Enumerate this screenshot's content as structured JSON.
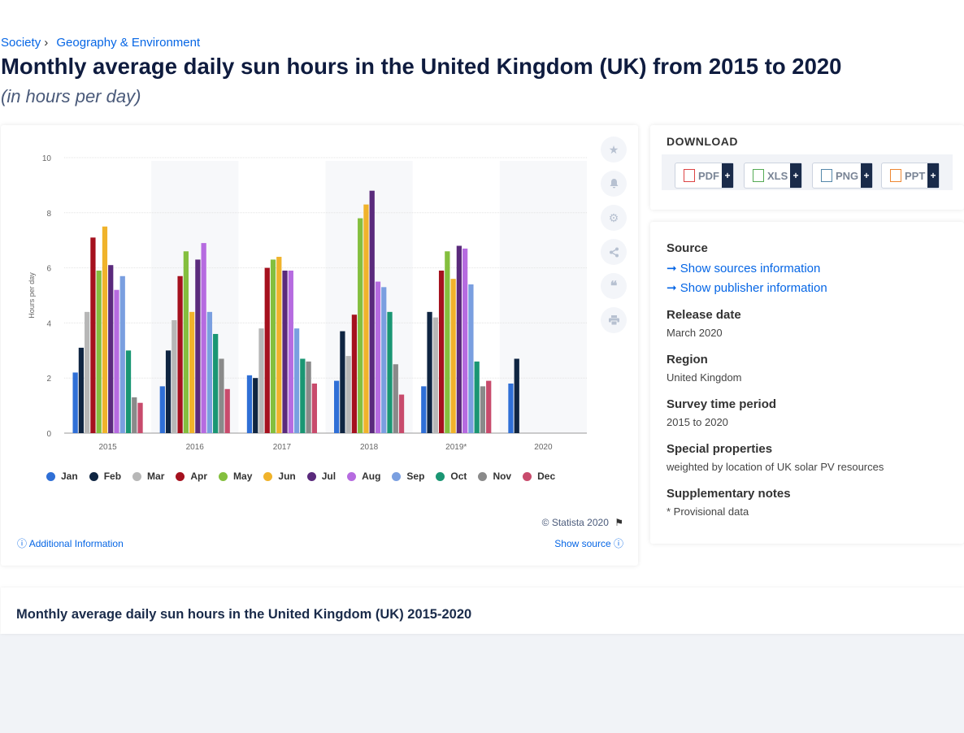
{
  "breadcrumb": {
    "item1": "Society",
    "item2": "Geography & Environment"
  },
  "header": {
    "title": "Monthly average daily sun hours in the United Kingdom (UK) from 2015 to 2020",
    "subtitle": "(in hours per day)"
  },
  "chart_card": {
    "copyright": "© Statista 2020",
    "additional_info": "Additional Information",
    "show_source": "Show source"
  },
  "download": {
    "title": "DOWNLOAD",
    "buttons": [
      "PDF",
      "XLS",
      "PNG",
      "PPT"
    ],
    "plus": "+"
  },
  "info": {
    "source_label": "Source",
    "show_sources": "Show sources information",
    "show_publisher": "Show publisher information",
    "release_label": "Release date",
    "release_value": "March 2020",
    "region_label": "Region",
    "region_value": "United Kingdom",
    "period_label": "Survey time period",
    "period_value": "2015 to 2020",
    "special_label": "Special properties",
    "special_value": "weighted by location of UK solar PV resources",
    "notes_label": "Supplementary notes",
    "notes_value": "* Provisional data"
  },
  "bottom": {
    "title": "Monthly average daily sun hours in the United Kingdom (UK) 2015-2020"
  },
  "colors": {
    "link": "#0666e5",
    "months": [
      "#2f6fd6",
      "#0f2542",
      "#b7b7b7",
      "#a5111e",
      "#84bf3e",
      "#f0b32b",
      "#5a2a7c",
      "#b66be0",
      "#7a9fe0",
      "#1a9673",
      "#8a8a8a",
      "#c84b6c"
    ]
  },
  "chart_data": {
    "type": "bar",
    "categories": [
      "2015",
      "2016",
      "2017",
      "2018",
      "2019*",
      "2020"
    ],
    "ylabel": "Hours per day",
    "xlabel": "",
    "ylim": [
      0,
      10
    ],
    "yticks": [
      0,
      2,
      4,
      6,
      8,
      10
    ],
    "grid": true,
    "legend_position": "bottom",
    "series": [
      {
        "name": "Jan",
        "values": [
          2.2,
          1.7,
          2.1,
          1.9,
          1.7,
          1.8
        ]
      },
      {
        "name": "Feb",
        "values": [
          3.1,
          3.0,
          2.0,
          3.7,
          4.4,
          2.7
        ]
      },
      {
        "name": "Mar",
        "values": [
          4.4,
          4.1,
          3.8,
          2.8,
          4.2,
          null
        ]
      },
      {
        "name": "Apr",
        "values": [
          7.1,
          5.7,
          6.0,
          4.3,
          5.9,
          null
        ]
      },
      {
        "name": "May",
        "values": [
          5.9,
          6.6,
          6.3,
          7.8,
          6.6,
          null
        ]
      },
      {
        "name": "Jun",
        "values": [
          7.5,
          4.4,
          6.4,
          8.3,
          5.6,
          null
        ]
      },
      {
        "name": "Jul",
        "values": [
          6.1,
          6.3,
          5.9,
          8.8,
          6.8,
          null
        ]
      },
      {
        "name": "Aug",
        "values": [
          5.2,
          6.9,
          5.9,
          5.5,
          6.7,
          null
        ]
      },
      {
        "name": "Sep",
        "values": [
          5.7,
          4.4,
          3.8,
          5.3,
          5.4,
          null
        ]
      },
      {
        "name": "Oct",
        "values": [
          3.0,
          3.6,
          2.7,
          4.4,
          2.6,
          null
        ]
      },
      {
        "name": "Nov",
        "values": [
          1.3,
          2.7,
          2.6,
          2.5,
          1.7,
          null
        ]
      },
      {
        "name": "Dec",
        "values": [
          1.1,
          1.6,
          1.8,
          1.4,
          1.9,
          null
        ]
      }
    ]
  }
}
